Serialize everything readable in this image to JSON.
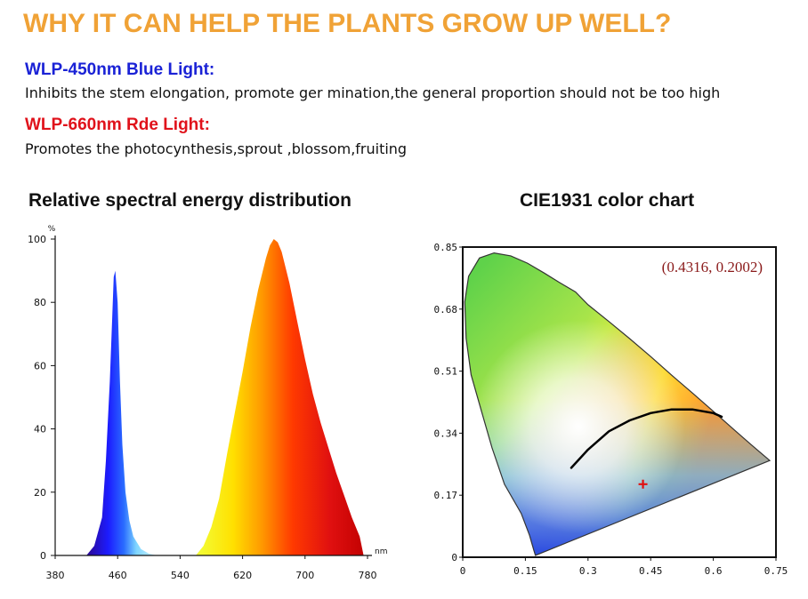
{
  "header": {
    "title": "WHY IT CAN HELP THE PLANTS GROW UP WELL?"
  },
  "lights": [
    {
      "title": "WLP-450nm Blue Light:",
      "description": "Inhibits the stem elongation, promote ger mination,the general proportion should not be too high",
      "color": "#1a22d6"
    },
    {
      "title": "WLP-660nm Rde Light:",
      "description": "Promotes the photocynthesis,sprout ,blossom,fruiting",
      "color": "#e0121b"
    }
  ],
  "accent_color": "#f0a236",
  "chart_data": [
    {
      "type": "area",
      "title": "Relative spectral energy distribution",
      "xlabel": "",
      "ylabel": "",
      "y_unit": "%",
      "x_unit": "nm",
      "xlim": [
        380,
        780
      ],
      "ylim": [
        0,
        100
      ],
      "x_ticks": [
        "380",
        "460",
        "540",
        "620",
        "700",
        "780"
      ],
      "y_ticks": [
        "0",
        "20",
        "40",
        "60",
        "80",
        "100"
      ],
      "series": [
        {
          "x": [
            420,
            430,
            440,
            445,
            450,
            453,
            455,
            457,
            460,
            463,
            466,
            470,
            475,
            480,
            490,
            500,
            510
          ],
          "y": [
            0,
            3,
            12,
            30,
            55,
            75,
            88,
            90,
            80,
            55,
            35,
            20,
            11,
            6,
            2,
            0.6,
            0
          ]
        },
        {
          "x": [
            560,
            570,
            580,
            590,
            600,
            610,
            620,
            630,
            640,
            650,
            655,
            660,
            665,
            670,
            680,
            690,
            700,
            710,
            720,
            730,
            740,
            750,
            760,
            770,
            775
          ],
          "y": [
            0,
            3,
            9,
            18,
            32,
            45,
            58,
            72,
            84,
            94,
            98,
            100,
            99,
            96,
            86,
            74,
            62,
            51,
            42,
            34,
            26,
            19,
            12,
            6,
            0
          ]
        }
      ]
    },
    {
      "type": "scatter",
      "title": "CIE1931 color chart",
      "xlabel": "",
      "ylabel": "",
      "xlim": [
        0,
        0.75
      ],
      "ylim": [
        0,
        0.85
      ],
      "x_ticks": [
        "0",
        "0.15",
        "0.3",
        "0.45",
        "0.6",
        "0.75"
      ],
      "y_ticks": [
        "0",
        "0.17",
        "0.34",
        "0.51",
        "0.68",
        "0.85"
      ],
      "point": {
        "x": 0.4316,
        "y": 0.2002,
        "label": "(0.4316, 0.2002)"
      },
      "planckian_locus": {
        "x": [
          0.26,
          0.3,
          0.35,
          0.4,
          0.45,
          0.5,
          0.55,
          0.6,
          0.62
        ],
        "y": [
          0.245,
          0.295,
          0.345,
          0.375,
          0.395,
          0.405,
          0.405,
          0.395,
          0.385
        ]
      },
      "spectral_locus": {
        "x": [
          0.174,
          0.17,
          0.16,
          0.14,
          0.1,
          0.07,
          0.045,
          0.02,
          0.008,
          0.005,
          0.014,
          0.04,
          0.075,
          0.115,
          0.155,
          0.195,
          0.23,
          0.27,
          0.3,
          0.35,
          0.4,
          0.45,
          0.5,
          0.55,
          0.6,
          0.65,
          0.69,
          0.735
        ],
        "y": [
          0.005,
          0.02,
          0.06,
          0.12,
          0.2,
          0.3,
          0.4,
          0.5,
          0.6,
          0.7,
          0.77,
          0.82,
          0.834,
          0.826,
          0.806,
          0.779,
          0.754,
          0.727,
          0.692,
          0.646,
          0.599,
          0.55,
          0.499,
          0.45,
          0.4,
          0.349,
          0.309,
          0.265
        ]
      }
    }
  ]
}
